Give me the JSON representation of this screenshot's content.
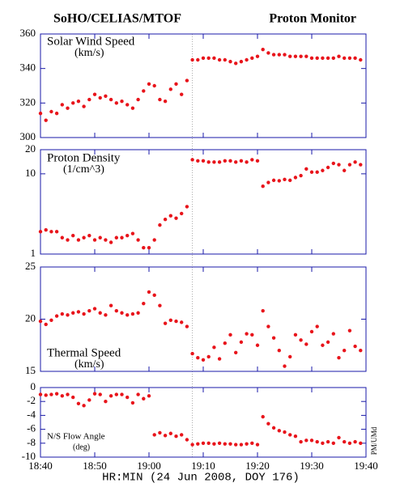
{
  "chart_data": {
    "type": "scatter",
    "title_left": "SoHO/CELIAS/MTOF",
    "title_right": "Proton Monitor",
    "xlabel": "HR:MIN (24 Jun 2008, DOY 176)",
    "side_text": "PM/UMd",
    "color": "#e8141b",
    "vline": "19:08",
    "xlim": [
      "18:40",
      "19:40"
    ],
    "xticks": [
      "18:40",
      "18:50",
      "19:00",
      "19:10",
      "19:20",
      "19:30",
      "19:40"
    ],
    "x": [
      "18:40",
      "18:41",
      "18:42",
      "18:43",
      "18:44",
      "18:45",
      "18:46",
      "18:47",
      "18:48",
      "18:49",
      "18:50",
      "18:51",
      "18:52",
      "18:53",
      "18:54",
      "18:55",
      "18:56",
      "18:57",
      "18:58",
      "18:59",
      "19:00",
      "19:01",
      "19:02",
      "19:03",
      "19:04",
      "19:05",
      "19:06",
      "19:07",
      "19:08",
      "19:09",
      "19:10",
      "19:11",
      "19:12",
      "19:13",
      "19:14",
      "19:15",
      "19:16",
      "19:17",
      "19:18",
      "19:19",
      "19:20",
      "19:21",
      "19:22",
      "19:23",
      "19:24",
      "19:25",
      "19:26",
      "19:27",
      "19:28",
      "19:29",
      "19:30",
      "19:31",
      "19:32",
      "19:33",
      "19:34",
      "19:35",
      "19:36",
      "19:37",
      "19:38",
      "19:39"
    ],
    "panels": [
      {
        "label": "Solar Wind Speed",
        "unit": "(km/s)",
        "ylim": [
          300,
          360
        ],
        "yticks": [
          300,
          320,
          340,
          360
        ],
        "log": false,
        "values": [
          314,
          310,
          315,
          314,
          319,
          317,
          320,
          321,
          318,
          322,
          325,
          323,
          324,
          322,
          320,
          321,
          319,
          317,
          322,
          327,
          331,
          330,
          322,
          321,
          328,
          331,
          325,
          333,
          345,
          345,
          346,
          346,
          346,
          345,
          345,
          344,
          343,
          344,
          345,
          346,
          347,
          351,
          349,
          348,
          348,
          348,
          347,
          347,
          347,
          347,
          346,
          346,
          346,
          346,
          346,
          347,
          346,
          346,
          346,
          345
        ]
      },
      {
        "label": "Proton Density",
        "unit": "(1/cm^3)",
        "ylim": [
          1,
          20
        ],
        "yticks": [
          1,
          10,
          20
        ],
        "log": true,
        "values": [
          1.9,
          2.0,
          1.9,
          1.9,
          1.6,
          1.5,
          1.7,
          1.5,
          1.6,
          1.7,
          1.5,
          1.6,
          1.5,
          1.4,
          1.6,
          1.6,
          1.7,
          1.8,
          1.5,
          1.2,
          1.2,
          1.5,
          2.3,
          2.7,
          3.0,
          2.8,
          3.2,
          3.9,
          15,
          14.5,
          14.5,
          14,
          14,
          14,
          14.5,
          14.5,
          14,
          14.5,
          14,
          15,
          14.5,
          7,
          7.8,
          8.3,
          8.2,
          8.5,
          8.3,
          9,
          9.5,
          11.5,
          10.5,
          10.5,
          11,
          12,
          13.5,
          13,
          11,
          13,
          14,
          13
        ]
      },
      {
        "label": "Thermal Speed",
        "unit": "(km/s)",
        "ylim": [
          15,
          25
        ],
        "yticks": [
          15,
          20,
          25
        ],
        "log": false,
        "values": [
          19.8,
          19.5,
          19.9,
          20.3,
          20.5,
          20.4,
          20.6,
          20.7,
          20.5,
          20.8,
          21.0,
          20.6,
          20.4,
          21.3,
          20.8,
          20.6,
          20.4,
          20.5,
          20.6,
          21.5,
          22.6,
          22.3,
          21.3,
          19.6,
          19.9,
          19.8,
          19.7,
          19.3,
          16.7,
          16.3,
          16.1,
          16.4,
          17.3,
          16.2,
          17.7,
          18.5,
          16.8,
          17.8,
          18.6,
          18.5,
          17.5,
          20.8,
          19.3,
          18.2,
          17.0,
          15.5,
          16.4,
          18.5,
          18.0,
          17.6,
          18.8,
          19.3,
          17.5,
          17.8,
          18.6,
          16.3,
          17.0,
          18.9,
          17.4,
          17.0
        ]
      },
      {
        "label": "N/S Flow Angle",
        "unit": "(deg)",
        "ylim": [
          -10,
          0
        ],
        "yticks": [
          -10,
          -8,
          -6,
          -4,
          -2,
          0
        ],
        "log": false,
        "values": [
          -1.0,
          -1.1,
          -1.0,
          -0.9,
          -1.2,
          -1.0,
          -1.4,
          -2.3,
          -2.6,
          -1.8,
          -0.9,
          -1.0,
          -2.0,
          -1.2,
          -1.0,
          -1.0,
          -1.4,
          -2.2,
          -1.0,
          -1.6,
          -1.2,
          -6.8,
          -6.5,
          -6.9,
          -6.6,
          -7.0,
          -6.8,
          -7.5,
          -8.2,
          -8.1,
          -8.0,
          -8.0,
          -8.1,
          -8.0,
          -8.1,
          -8.1,
          -8.2,
          -8.2,
          -8.1,
          -8.0,
          -8.2,
          -4.2,
          -5.2,
          -5.8,
          -6.2,
          -6.4,
          -6.8,
          -7.0,
          -7.8,
          -7.6,
          -7.6,
          -7.8,
          -8.0,
          -7.8,
          -8.0,
          -7.2,
          -7.8,
          -8.0,
          -7.8,
          -8.0
        ]
      }
    ]
  }
}
